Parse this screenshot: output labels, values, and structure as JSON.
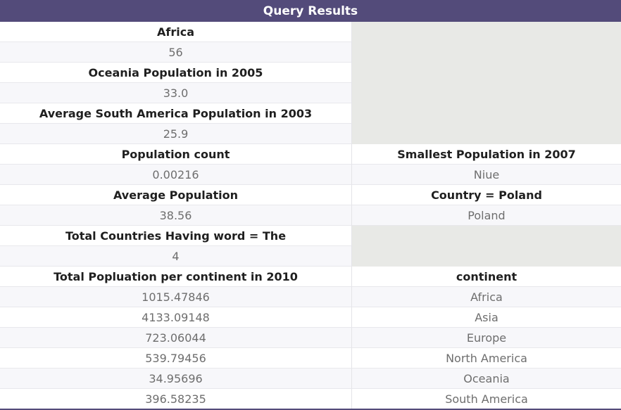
{
  "header": {
    "title": "Query Results"
  },
  "rows": [
    {
      "left": "Africa",
      "right": null
    },
    {
      "left": "56",
      "right": null
    },
    {
      "left": "Oceania Population in 2005",
      "right": null
    },
    {
      "left": "33.0",
      "right": null
    },
    {
      "left": "Average South America Population in 2003",
      "right": null
    },
    {
      "left": "25.9",
      "right": null
    },
    {
      "left": "Population count",
      "right": "Smallest Population in 2007"
    },
    {
      "left": "0.00216",
      "right": "Niue"
    },
    {
      "left": "Average Population",
      "right": "Country = Poland"
    },
    {
      "left": "38.56",
      "right": "Poland"
    },
    {
      "left": "Total Countries Having word = The",
      "right": null
    },
    {
      "left": "4",
      "right": null
    },
    {
      "left": "Total Popluation per continent in 2010",
      "right": "continent"
    },
    {
      "left": "1015.47846",
      "right": "Africa"
    },
    {
      "left": "4133.09148",
      "right": "Asia"
    },
    {
      "left": "723.06044",
      "right": "Europe"
    },
    {
      "left": "539.79456",
      "right": "North America"
    },
    {
      "left": "34.95696",
      "right": "Oceania"
    },
    {
      "left": "396.58235",
      "right": "South America"
    }
  ]
}
